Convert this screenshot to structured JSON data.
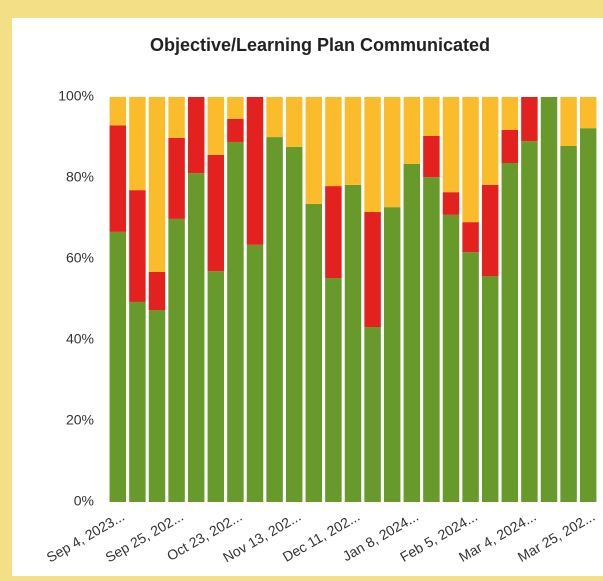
{
  "chart_data": {
    "type": "stacked_bar",
    "title": "Objective/Learning Plan Communicated",
    "categories": [
      "Sep 4, 2023...",
      null,
      null,
      "Sep 25, 202...",
      null,
      null,
      "Oct 23, 202...",
      null,
      null,
      "Nov 13, 202...",
      null,
      null,
      "Dec 11, 202...",
      null,
      null,
      "Jan 8, 2024...",
      null,
      null,
      "Feb 5, 2024...",
      null,
      null,
      "Mar 4, 2024...",
      null,
      null,
      "Mar 25, 202..."
    ],
    "series": [
      {
        "color": "#67992b",
        "values": [
          66.7,
          49.4,
          47.4,
          69.9,
          81.2,
          57.0,
          88.9,
          63.5,
          90.1,
          87.7,
          73.6,
          55.3,
          78.3,
          43.2,
          72.8,
          83.5,
          80.2,
          70.9,
          61.7,
          55.8,
          83.7,
          89.1,
          100,
          87.9,
          92.3
        ]
      },
      {
        "color": "#e3211f",
        "values": [
          26.3,
          27.6,
          9.4,
          20.0,
          18.8,
          28.7,
          5.7,
          36.5,
          0,
          0,
          0,
          22.7,
          0,
          28.4,
          0,
          0,
          10.2,
          5.6,
          7.4,
          22.5,
          8.2,
          10.9,
          0,
          0,
          0
        ]
      },
      {
        "color": "#fbbc2c",
        "values": [
          7.0,
          23.0,
          43.2,
          10.1,
          0,
          14.3,
          5.4,
          0,
          9.9,
          12.3,
          26.4,
          22.0,
          21.7,
          28.4,
          27.2,
          16.5,
          9.6,
          23.5,
          30.9,
          21.7,
          8.1,
          0,
          0,
          12.1,
          7.7
        ]
      }
    ],
    "ylim": [
      0,
      100
    ],
    "yticks": [
      {
        "value": 0,
        "label": "0%"
      },
      {
        "value": 20,
        "label": "20%"
      },
      {
        "value": 40,
        "label": "40%"
      },
      {
        "value": 60,
        "label": "60%"
      },
      {
        "value": 80,
        "label": "80%"
      },
      {
        "value": 100,
        "label": "100%"
      }
    ]
  }
}
